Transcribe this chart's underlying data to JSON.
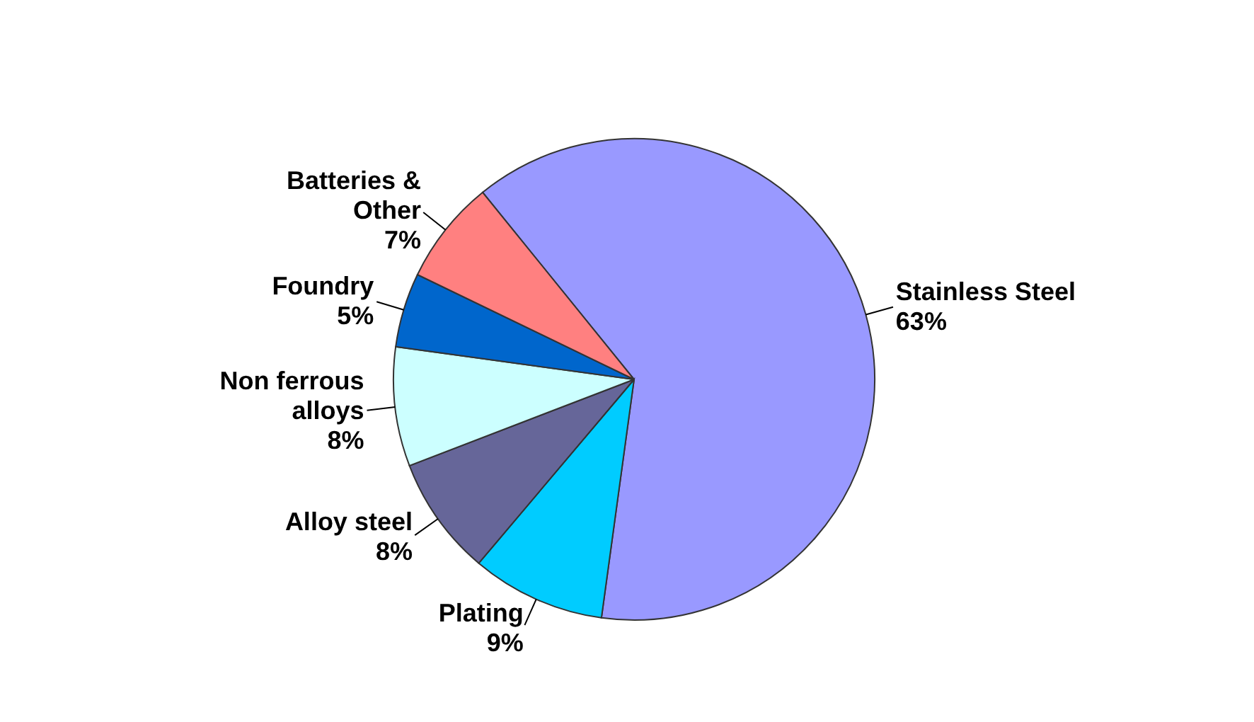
{
  "chart_data": {
    "type": "pie",
    "categories": [
      "Stainless Steel",
      "Plating",
      "Alloy steel",
      "Non ferrous alloys",
      "Foundry",
      "Batteries & Other"
    ],
    "values": [
      63,
      9,
      8,
      8,
      5,
      7
    ],
    "value_labels": [
      "63%",
      "9%",
      "8%",
      "8%",
      "5%",
      "7%"
    ],
    "colors": [
      "#9999ff",
      "#00ccff",
      "#666699",
      "#ccffff",
      "#0066cc",
      "#ff8080"
    ],
    "legend": false
  }
}
